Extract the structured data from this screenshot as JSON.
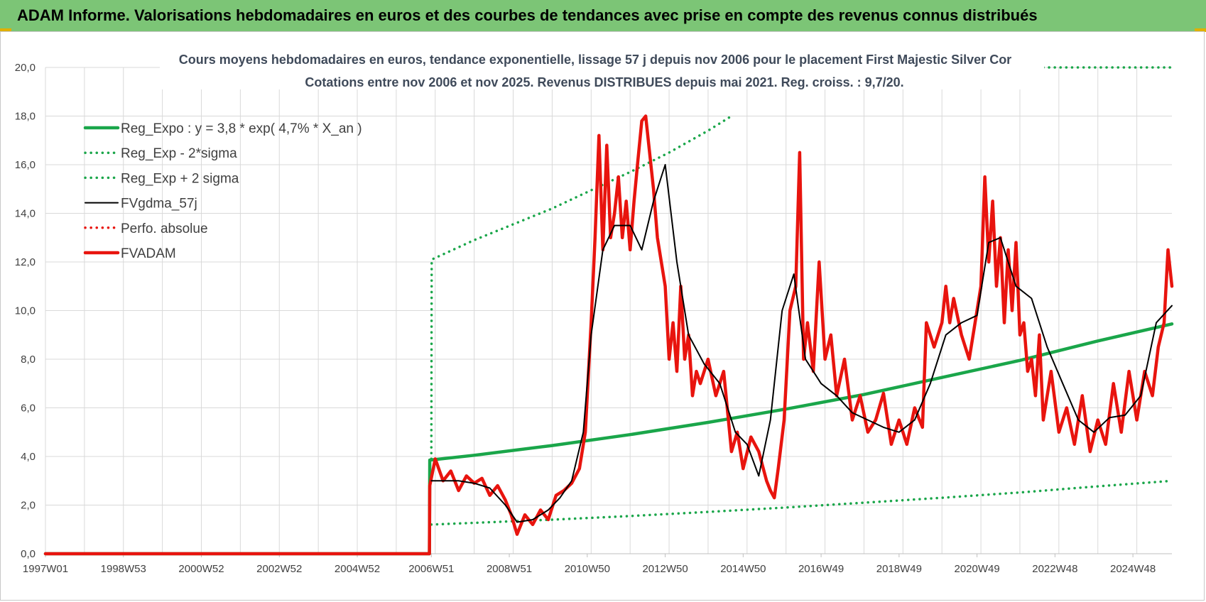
{
  "banner": {
    "title": "ADAM Informe. Valorisations hebdomadaires en euros et des courbes de tendances avec prise en compte des revenus connus distribués"
  },
  "colors": {
    "banner_bg": "#7cc576",
    "trend_green": "#1aa64a",
    "price_red": "#e8140e",
    "smooth_black": "#000000",
    "grid": "#d9d9d9"
  },
  "chart_data": {
    "type": "line",
    "title": "Cours moyens hebdomadaires en euros, tendance exponentielle, lissage 57 j depuis nov 2006 pour le placement First Majestic Silver  Cor",
    "subtitle": "Cotations entre nov 2006 et nov 2025. Revenus DISTRIBUES depuis mai 2021. Reg. croiss. : 9,7/20.",
    "xlabel": "",
    "ylabel": "",
    "ylim": [
      0,
      20
    ],
    "xlim": [
      1997.0,
      2025.9
    ],
    "grid": true,
    "legend_position": "upper-left",
    "y_ticks": [
      "0,0",
      "2,0",
      "4,0",
      "6,0",
      "8,0",
      "10,0",
      "12,0",
      "14,0",
      "16,0",
      "18,0",
      "20,0"
    ],
    "x_ticks": [
      {
        "label": "1997W01",
        "x": 1997.0
      },
      {
        "label": "1998W53",
        "x": 1999.0
      },
      {
        "label": "2000W52",
        "x": 2001.0
      },
      {
        "label": "2002W52",
        "x": 2003.0
      },
      {
        "label": "2004W52",
        "x": 2005.0
      },
      {
        "label": "2006W51",
        "x": 2006.9
      },
      {
        "label": "2008W51",
        "x": 2008.9
      },
      {
        "label": "2010W50",
        "x": 2010.9
      },
      {
        "label": "2012W50",
        "x": 2012.9
      },
      {
        "label": "2014W50",
        "x": 2014.9
      },
      {
        "label": "2016W49",
        "x": 2016.9
      },
      {
        "label": "2018W49",
        "x": 2018.9
      },
      {
        "label": "2020W49",
        "x": 2020.9
      },
      {
        "label": "2022W48",
        "x": 2022.9
      },
      {
        "label": "2024W48",
        "x": 2024.9
      }
    ],
    "series": [
      {
        "name": "Reg_Expo : y = 3,8 * exp( 4,7% *  X_an )",
        "style": "solid-thick",
        "color": "#1aa64a",
        "x": [
          1997.0,
          2006.85,
          2006.86,
          2008.0,
          2010.0,
          2012.0,
          2014.0,
          2016.0,
          2018.0,
          2020.0,
          2022.0,
          2024.0,
          2025.9
        ],
        "y": [
          0.0,
          0.0,
          3.85,
          4.05,
          4.45,
          4.9,
          5.4,
          5.95,
          6.55,
          7.25,
          7.95,
          8.75,
          9.45
        ]
      },
      {
        "name": "Reg_Exp - 2*sigma",
        "style": "dotted",
        "color": "#1aa64a",
        "x": [
          2006.9,
          2008.0,
          2010.0,
          2012.0,
          2014.0,
          2016.0,
          2018.0,
          2020.0,
          2022.0,
          2024.0,
          2025.9
        ],
        "y": [
          1.2,
          1.27,
          1.4,
          1.55,
          1.72,
          1.9,
          2.1,
          2.3,
          2.52,
          2.77,
          3.0
        ]
      },
      {
        "name": "Reg_Exp + 2 sigma",
        "style": "dotted",
        "color": "#1aa64a",
        "x": [
          2006.9,
          2006.91,
          2008.0,
          2010.0,
          2012.0,
          2013.0,
          2014.0,
          2014.6
        ],
        "y": [
          3.9,
          12.1,
          12.9,
          14.2,
          15.7,
          16.5,
          17.4,
          18.0
        ]
      },
      {
        "name": "Reg_Exp + 2 sigma (clipped at 20)",
        "style": "dotted",
        "color": "#1aa64a",
        "legend": false,
        "x": [
          2022.6,
          2025.9
        ],
        "y": [
          20.0,
          20.0
        ]
      },
      {
        "name": "FVgdma_57j",
        "style": "solid-thin",
        "color": "#000000",
        "x": [
          2006.9,
          2007.2,
          2007.6,
          2008.0,
          2008.4,
          2008.8,
          2009.1,
          2009.5,
          2009.9,
          2010.2,
          2010.5,
          2010.8,
          2011.0,
          2011.3,
          2011.6,
          2012.0,
          2012.3,
          2012.6,
          2012.9,
          2013.2,
          2013.5,
          2013.9,
          2014.3,
          2014.7,
          2015.0,
          2015.3,
          2015.6,
          2015.9,
          2016.2,
          2016.5,
          2016.9,
          2017.3,
          2017.7,
          2018.1,
          2018.5,
          2018.9,
          2019.3,
          2019.7,
          2020.1,
          2020.5,
          2020.9,
          2021.2,
          2021.5,
          2021.9,
          2022.3,
          2022.7,
          2023.1,
          2023.5,
          2023.9,
          2024.3,
          2024.7,
          2025.1,
          2025.5,
          2025.9
        ],
        "y": [
          3.0,
          3.0,
          3.0,
          2.9,
          2.7,
          2.0,
          1.3,
          1.4,
          1.8,
          2.3,
          3.0,
          5.0,
          9.0,
          12.5,
          13.5,
          13.5,
          12.5,
          14.5,
          16.0,
          12.0,
          9.0,
          7.8,
          7.0,
          5.0,
          4.5,
          3.2,
          5.5,
          10.0,
          11.5,
          8.0,
          7.0,
          6.5,
          5.8,
          5.5,
          5.2,
          5.0,
          5.5,
          7.0,
          9.0,
          9.5,
          9.8,
          12.8,
          13.0,
          11.0,
          10.5,
          8.5,
          7.0,
          5.5,
          5.0,
          5.6,
          5.7,
          6.5,
          9.5,
          10.2
        ]
      },
      {
        "name": "Perfo. absolue",
        "style": "dotted",
        "color": "#e8140e",
        "x": [],
        "y": []
      },
      {
        "name": "FVADAM",
        "style": "solid-thick",
        "color": "#e8140e",
        "x": [
          1997.0,
          2006.85,
          2006.86,
          2007.0,
          2007.2,
          2007.4,
          2007.6,
          2007.8,
          2008.0,
          2008.2,
          2008.4,
          2008.6,
          2008.8,
          2008.95,
          2009.1,
          2009.3,
          2009.5,
          2009.7,
          2009.9,
          2010.1,
          2010.3,
          2010.5,
          2010.7,
          2010.85,
          2011.0,
          2011.1,
          2011.2,
          2011.3,
          2011.4,
          2011.5,
          2011.6,
          2011.7,
          2011.8,
          2011.9,
          2012.0,
          2012.1,
          2012.2,
          2012.3,
          2012.4,
          2012.5,
          2012.6,
          2012.7,
          2012.8,
          2012.9,
          2013.0,
          2013.1,
          2013.2,
          2013.3,
          2013.4,
          2013.5,
          2013.6,
          2013.7,
          2013.8,
          2014.0,
          2014.2,
          2014.4,
          2014.6,
          2014.75,
          2014.9,
          2015.1,
          2015.3,
          2015.5,
          2015.6,
          2015.7,
          2015.8,
          2015.95,
          2016.1,
          2016.25,
          2016.35,
          2016.45,
          2016.55,
          2016.7,
          2016.85,
          2017.0,
          2017.15,
          2017.3,
          2017.5,
          2017.7,
          2017.9,
          2018.1,
          2018.3,
          2018.5,
          2018.7,
          2018.9,
          2019.1,
          2019.3,
          2019.5,
          2019.6,
          2019.8,
          2020.0,
          2020.1,
          2020.2,
          2020.3,
          2020.5,
          2020.7,
          2020.9,
          2021.0,
          2021.1,
          2021.2,
          2021.3,
          2021.4,
          2021.5,
          2021.6,
          2021.7,
          2021.8,
          2021.9,
          2022.0,
          2022.1,
          2022.2,
          2022.3,
          2022.4,
          2022.5,
          2022.6,
          2022.8,
          2023.0,
          2023.2,
          2023.4,
          2023.6,
          2023.8,
          2024.0,
          2024.2,
          2024.4,
          2024.6,
          2024.8,
          2025.0,
          2025.2,
          2025.4,
          2025.55,
          2025.7,
          2025.8,
          2025.9
        ],
        "y": [
          0.0,
          0.0,
          2.8,
          3.9,
          3.0,
          3.4,
          2.6,
          3.2,
          2.9,
          3.1,
          2.4,
          2.8,
          2.2,
          1.6,
          0.8,
          1.6,
          1.2,
          1.8,
          1.4,
          2.4,
          2.6,
          2.9,
          3.5,
          5.0,
          9.5,
          13.0,
          17.2,
          12.5,
          16.8,
          13.0,
          14.0,
          15.5,
          13.0,
          14.5,
          12.5,
          14.5,
          16.2,
          17.8,
          18.0,
          16.5,
          15.0,
          13.0,
          12.0,
          11.0,
          8.0,
          9.5,
          7.5,
          11.0,
          8.0,
          9.0,
          6.5,
          7.5,
          7.0,
          8.0,
          6.5,
          7.5,
          4.2,
          5.0,
          3.5,
          4.8,
          4.2,
          3.0,
          2.6,
          2.3,
          3.5,
          5.5,
          10.0,
          11.0,
          16.5,
          8.0,
          9.5,
          7.5,
          12.0,
          8.0,
          9.0,
          6.5,
          8.0,
          5.5,
          6.5,
          5.0,
          5.5,
          6.6,
          4.5,
          5.5,
          4.5,
          6.0,
          5.2,
          9.5,
          8.5,
          9.5,
          11.0,
          9.5,
          10.5,
          9.0,
          8.0,
          10.0,
          11.0,
          15.5,
          12.0,
          14.5,
          11.0,
          13.0,
          9.5,
          12.5,
          10.0,
          12.8,
          9.0,
          9.5,
          7.5,
          8.0,
          6.5,
          9.0,
          5.5,
          7.5,
          5.0,
          6.0,
          4.5,
          6.5,
          4.2,
          5.5,
          4.5,
          7.0,
          5.0,
          7.5,
          5.5,
          7.5,
          6.5,
          8.5,
          9.5,
          12.5,
          11.0
        ]
      }
    ]
  }
}
